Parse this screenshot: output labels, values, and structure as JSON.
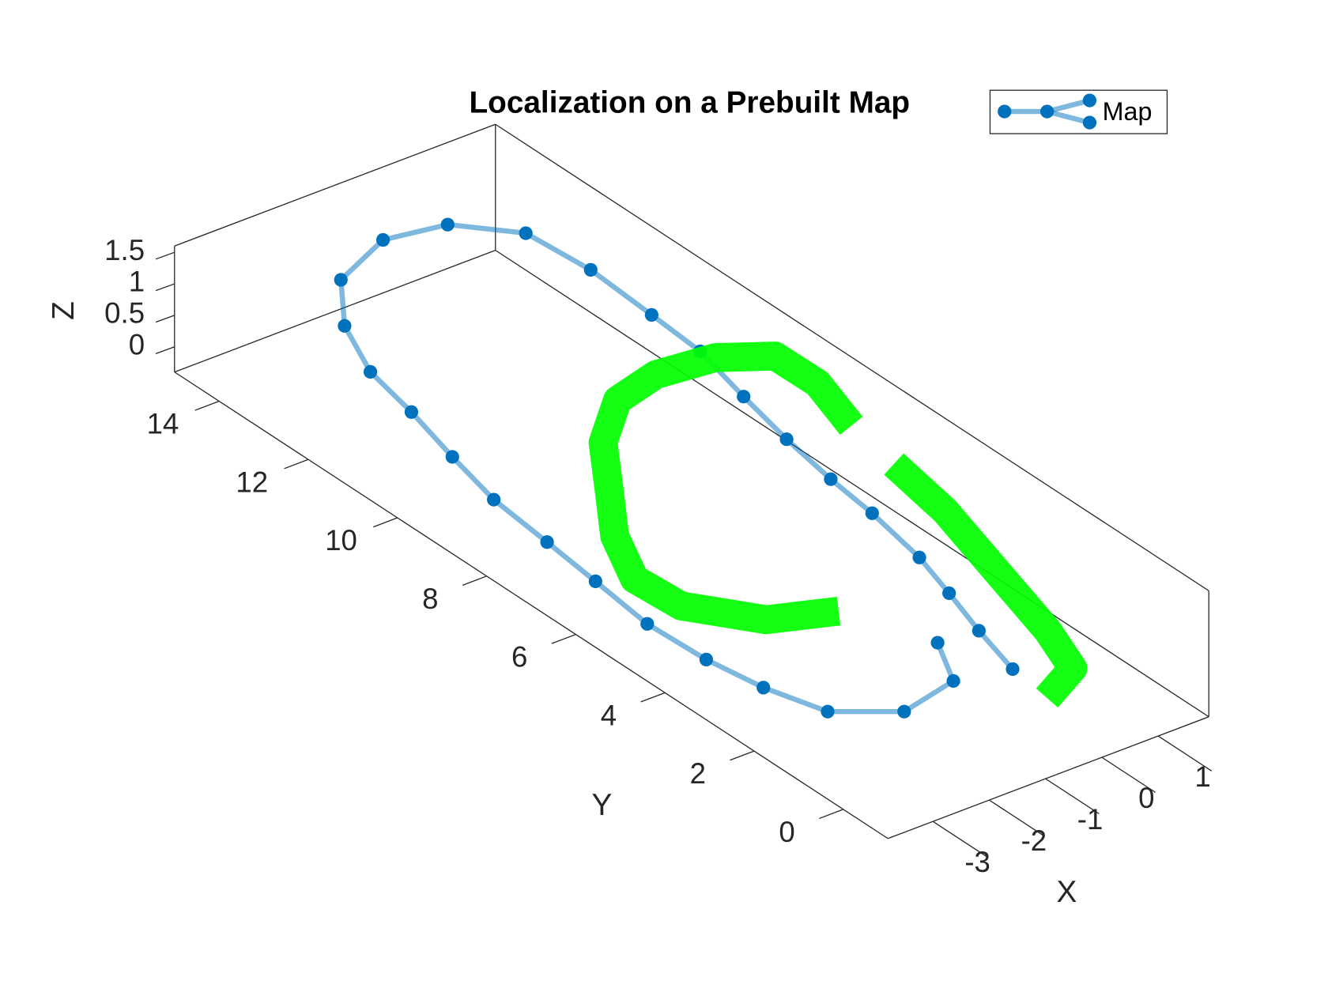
{
  "chart_data": {
    "type": "line3d",
    "title": "Localization on a Prebuilt Map",
    "x_label": "X",
    "y_label": "Y",
    "z_label": "Z",
    "xlim": [
      -3.8,
      1.9
    ],
    "ylim": [
      -1,
      15
    ],
    "zlim": [
      -0.4,
      1.6
    ],
    "xticks": [
      -3,
      -2,
      -1,
      0,
      1
    ],
    "yticks": [
      0,
      2,
      4,
      6,
      8,
      10,
      12,
      14
    ],
    "zticks": [
      0,
      0.5,
      1,
      1.5
    ],
    "legend": "top-right",
    "series": [
      {
        "name": "Map",
        "color": "#0072bd",
        "x": [
          -0.46,
          -0.18,
          0.13,
          0.41,
          0.64,
          0.76,
          0.95,
          1.2,
          1.49,
          1.57,
          1.66,
          1.56,
          0.83,
          -0.16,
          -1.32,
          -2.07,
          -2.57,
          -2.8,
          -3.11,
          -3.38,
          -3.51,
          -3.64,
          -3.79,
          -3.74,
          -3.58,
          -3.27,
          -2.41,
          -1.33,
          -0.85
        ],
        "y": [
          0.42,
          1.53,
          2.59,
          3.61,
          4.96,
          6.04,
          7.27,
          8.55,
          9.89,
          11.08,
          12.56,
          13.89,
          14.72,
          14.92,
          14.4,
          13.37,
          12.16,
          10.95,
          9.64,
          8.37,
          7.01,
          5.76,
          4.41,
          3.15,
          2.07,
          1.02,
          0.39,
          0.65,
          1.61
        ],
        "z": [
          0.5,
          0.5,
          0.5,
          0.5,
          0.5,
          0.5,
          0.5,
          0.5,
          0.5,
          0.5,
          0.5,
          0.5,
          0.5,
          0.5,
          0.5,
          0.5,
          0.5,
          0.5,
          0.5,
          0.5,
          0.5,
          0.5,
          0.5,
          0.5,
          0.5,
          0.5,
          0.5,
          0.5,
          0.5
        ]
      },
      {
        "color": "#00ff00",
        "x": [
          -1.42,
          -2.38,
          -3.1,
          -3.16,
          -2.65,
          -1.91,
          -1.17,
          -0.28,
          0.59,
          1.55,
          2.25,
          2.26,
          1.91,
          null,
          1.73,
          1.5,
          1.05,
          0.6,
          0.23,
          -0.57
        ],
        "y": [
          3.11,
          3.52,
          4.52,
          5.49,
          6.58,
          7.64,
          8.71,
          9.51,
          9.75,
          9.63,
          9.17,
          8.23,
          7.03,
          null,
          5.85,
          4.41,
          2.7,
          0.98,
          -0.06,
          -0.49
        ],
        "z": [
          0.5,
          0.5,
          0.5,
          0.5,
          0.5,
          0.5,
          0.5,
          0.5,
          0.5,
          0.5,
          0.5,
          0.5,
          0.5,
          null,
          0.5,
          0.5,
          0.5,
          0.5,
          0.5,
          0.5
        ]
      }
    ]
  }
}
